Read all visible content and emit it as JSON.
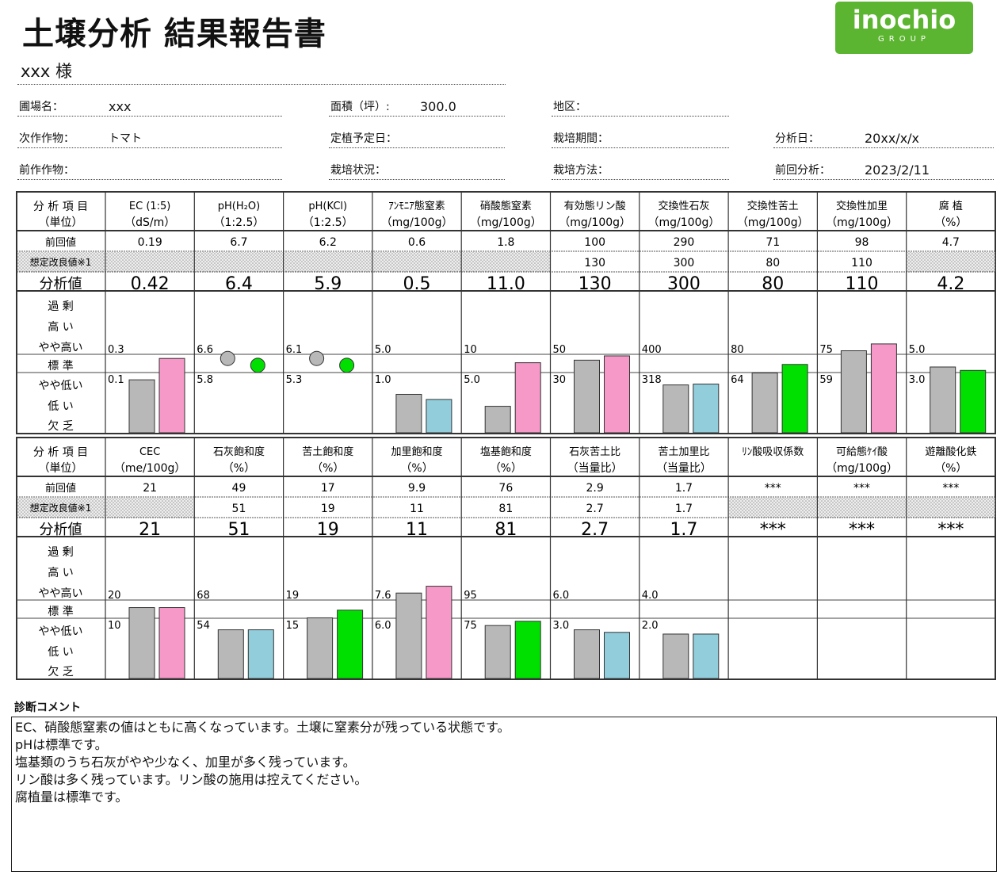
{
  "title": "土壌分析  結果報告書",
  "logo": {
    "name": "inochio",
    "sub": "GROUP"
  },
  "customer": "xxx  様",
  "info": {
    "farm_label": "圃場名：",
    "farm_value": "xxx",
    "area_label": "面積（坪）:",
    "area_value": "300.0",
    "region_label": "地区：",
    "next_crop_label": "次作作物：",
    "next_crop_value": "トマト",
    "planting_label": "定植予定日：",
    "period_label": "栽培期間：",
    "analysis_date_label": "分析日：",
    "analysis_date_value": "20xx/x/x",
    "prev_crop_label": "前作作物：",
    "status_label": "栽培状況：",
    "method_label": "栽培方法：",
    "prev_analysis_label": "前回分析：",
    "prev_analysis_value": "2023/2/11"
  },
  "table_labels": {
    "header1": "分 析 項 目",
    "header2": "（単位）",
    "prev": "前回値",
    "target": "想定改良値※1",
    "value": "分析値",
    "levels": [
      "過  剰",
      "高  い",
      "やや高い",
      "標  準",
      "やや低い",
      "低  い",
      "欠  乏"
    ]
  },
  "colors": {
    "gray": "#b8b8b8",
    "pink": "#f799c8",
    "blue": "#92cddc",
    "green": "#00e000",
    "hatch": "#cfcfcf"
  },
  "tables": [
    {
      "columns": [
        {
          "name": "EC (1:5)",
          "unit": "（dS/m）",
          "prev": "0.19",
          "target": "",
          "value": "0.42",
          "upper": "0.3",
          "lower": "0.1",
          "chart": "bar",
          "prev_level": 0.62,
          "value_level": 0.87,
          "color": "pink"
        },
        {
          "name": "pH(H₂O)",
          "unit": "（1:2.5）",
          "prev": "6.7",
          "target": "",
          "value": "6.4",
          "upper": "6.6",
          "lower": "5.8",
          "chart": "dot",
          "prev_level": 0.87,
          "value_level": 0.79,
          "color": "green"
        },
        {
          "name": "pH(KCl)",
          "unit": "（1:2.5）",
          "prev": "6.2",
          "target": "",
          "value": "5.9",
          "upper": "6.1",
          "lower": "5.3",
          "chart": "dot",
          "prev_level": 0.87,
          "value_level": 0.79,
          "color": "green"
        },
        {
          "name": "ｱﾝﾓﾆｱ態窒素",
          "unit": "（mg/100g）",
          "prev": "0.6",
          "target": "",
          "value": "0.5",
          "upper": "5.0",
          "lower": "1.0",
          "chart": "bar",
          "prev_level": 0.45,
          "value_level": 0.39,
          "color": "blue"
        },
        {
          "name": "硝酸態窒素",
          "unit": "（mg/100g）",
          "prev": "1.8",
          "target": "",
          "value": "11.0",
          "upper": "10",
          "lower": "5.0",
          "chart": "bar",
          "prev_level": 0.31,
          "value_level": 0.82,
          "color": "pink"
        },
        {
          "name": "有効態リン酸",
          "unit": "（mg/100g）",
          "prev": "100",
          "target": "130",
          "value": "130",
          "upper": "50",
          "lower": "30",
          "chart": "bar",
          "prev_level": 0.85,
          "value_level": 0.9,
          "color": "pink"
        },
        {
          "name": "交換性石灰",
          "unit": "（mg/100g）",
          "prev": "290",
          "target": "300",
          "value": "300",
          "upper": "400",
          "lower": "318",
          "chart": "bar",
          "prev_level": 0.56,
          "value_level": 0.57,
          "color": "blue"
        },
        {
          "name": "交換性苦土",
          "unit": "（mg/100g）",
          "prev": "71",
          "target": "80",
          "value": "80",
          "upper": "80",
          "lower": "64",
          "chart": "bar",
          "prev_level": 0.7,
          "value_level": 0.8,
          "color": "green"
        },
        {
          "name": "交換性加里",
          "unit": "（mg/100g）",
          "prev": "98",
          "target": "110",
          "value": "110",
          "upper": "75",
          "lower": "59",
          "chart": "bar",
          "prev_level": 0.96,
          "value_level": 1.04,
          "color": "pink"
        },
        {
          "name": "腐  植",
          "unit": "（%）",
          "prev": "4.7",
          "target": "",
          "value": "4.2",
          "upper": "5.0",
          "lower": "3.0",
          "chart": "bar",
          "prev_level": 0.77,
          "value_level": 0.73,
          "color": "green"
        }
      ]
    },
    {
      "columns": [
        {
          "name": "CEC",
          "unit": "（me/100g）",
          "prev": "21",
          "target": "",
          "value": "21",
          "upper": "20",
          "lower": "10",
          "chart": "bar",
          "prev_level": 0.83,
          "value_level": 0.83,
          "color": "pink"
        },
        {
          "name": "石灰飽和度",
          "unit": "（%）",
          "prev": "49",
          "target": "51",
          "value": "51",
          "upper": "68",
          "lower": "54",
          "chart": "bar",
          "prev_level": 0.57,
          "value_level": 0.57,
          "color": "blue"
        },
        {
          "name": "苦土飽和度",
          "unit": "（%）",
          "prev": "17",
          "target": "19",
          "value": "19",
          "upper": "19",
          "lower": "15",
          "chart": "bar",
          "prev_level": 0.71,
          "value_level": 0.8,
          "color": "green"
        },
        {
          "name": "加里飽和度",
          "unit": "（%）",
          "prev": "9.9",
          "target": "11",
          "value": "11",
          "upper": "7.6",
          "lower": "6.0",
          "chart": "bar",
          "prev_level": 1.0,
          "value_level": 1.08,
          "color": "pink"
        },
        {
          "name": "塩基飽和度",
          "unit": "（%）",
          "prev": "76",
          "target": "81",
          "value": "81",
          "upper": "95",
          "lower": "75",
          "chart": "bar",
          "prev_level": 0.62,
          "value_level": 0.67,
          "color": "green"
        },
        {
          "name": "石灰苦土比",
          "unit": "（当量比）",
          "prev": "2.9",
          "target": "2.7",
          "value": "2.7",
          "upper": "6.0",
          "lower": "3.0",
          "chart": "bar",
          "prev_level": 0.57,
          "value_level": 0.54,
          "color": "blue"
        },
        {
          "name": "苦土加里比",
          "unit": "（当量比）",
          "prev": "1.7",
          "target": "1.7",
          "value": "1.7",
          "upper": "4.0",
          "lower": "2.0",
          "chart": "bar",
          "prev_level": 0.52,
          "value_level": 0.52,
          "color": "blue"
        },
        {
          "name": "ﾘﾝ酸吸収係数",
          "unit": "",
          "prev": "***",
          "target": "",
          "value": "***",
          "upper": "",
          "lower": "",
          "chart": "none"
        },
        {
          "name": "可給態ｹｲ酸",
          "unit": "（mg/100g）",
          "prev": "***",
          "target": "",
          "value": "***",
          "upper": "",
          "lower": "",
          "chart": "none"
        },
        {
          "name": "遊離酸化鉄",
          "unit": "（%）",
          "prev": "***",
          "target": "",
          "value": "***",
          "upper": "",
          "lower": "",
          "chart": "none"
        }
      ]
    }
  ],
  "comment": {
    "label": "診断コメント",
    "lines": [
      "EC、硝酸態窒素の値はともに高くなっています。土壌に窒素分が残っている状態です。",
      "pHは標準です。",
      "塩基類のうち石灰がやや少なく、加里が多く残っています。",
      "リン酸は多く残っています。リン酸の施用は控えてください。",
      "腐植量は標準です。"
    ]
  }
}
